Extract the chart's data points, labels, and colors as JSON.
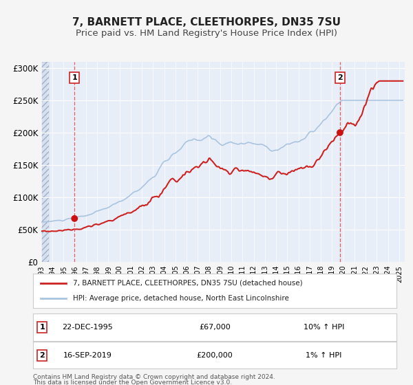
{
  "title": "7, BARNETT PLACE, CLEETHORPES, DN35 7SU",
  "subtitle": "Price paid vs. HM Land Registry's House Price Index (HPI)",
  "title_fontsize": 11,
  "subtitle_fontsize": 9.5,
  "background_color": "#f0f4fa",
  "plot_bg_color": "#e8eef8",
  "grid_color": "#ffffff",
  "hpi_line_color": "#aac4e0",
  "price_line_color": "#cc2222",
  "marker_color": "#cc1111",
  "sale1_date_num": 1995.97,
  "sale1_price": 67000,
  "sale1_label": "22-DEC-1995",
  "sale1_amount": "£67,000",
  "sale1_hpi": "10% ↑ HPI",
  "sale2_date_num": 2019.71,
  "sale2_price": 200000,
  "sale2_label": "16-SEP-2019",
  "sale2_amount": "£200,000",
  "sale2_hpi": "1% ↑ HPI",
  "xmin": 1993.0,
  "xmax": 2025.5,
  "ymin": 0,
  "ymax": 310000,
  "yticks": [
    0,
    50000,
    100000,
    150000,
    200000,
    250000,
    300000
  ],
  "ytick_labels": [
    "£0",
    "£50K",
    "£100K",
    "£150K",
    "£200K",
    "£250K",
    "£300K"
  ],
  "legend_line1": "7, BARNETT PLACE, CLEETHORPES, DN35 7SU (detached house)",
  "legend_line2": "HPI: Average price, detached house, North East Lincolnshire",
  "footnote1": "Contains HM Land Registry data © Crown copyright and database right 2024.",
  "footnote2": "This data is licensed under the Open Government Licence v3.0."
}
